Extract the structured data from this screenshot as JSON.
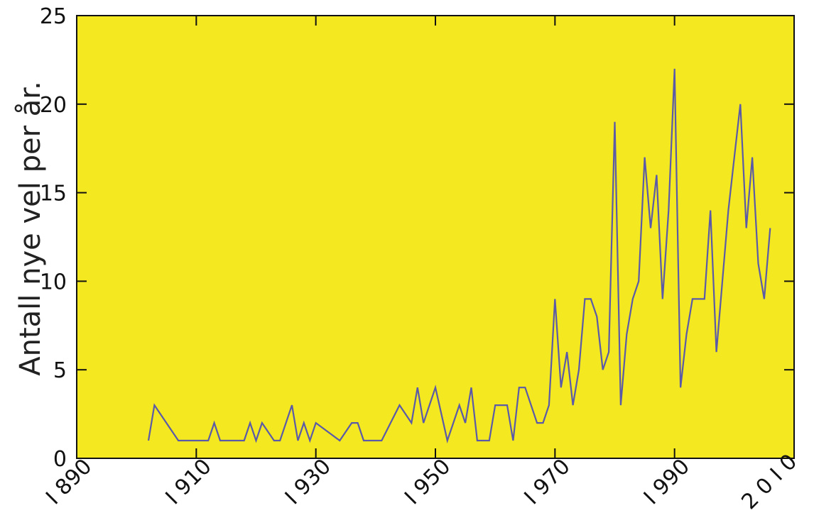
{
  "chart_data": {
    "type": "line",
    "title": "",
    "xlabel": "",
    "ylabel": "Antall nye vel per år.",
    "xlim": [
      1890,
      2010
    ],
    "ylim": [
      0,
      25
    ],
    "x_ticks": [
      1890,
      1910,
      1930,
      1950,
      1970,
      1990,
      2010
    ],
    "x_tick_labels": [
      "I 890",
      "I 910",
      "I 930",
      "I 950",
      "I 970",
      "I 990",
      "2 0 I 0"
    ],
    "y_ticks": [
      0,
      5,
      10,
      15,
      20,
      25
    ],
    "y_tick_labels": [
      "0",
      "5",
      "10",
      "15",
      "20",
      "25"
    ],
    "grid": false,
    "colors": {
      "plot_background": "#f4e820",
      "line": "#5a5aa8",
      "axis": "#111111"
    },
    "series": [
      {
        "x": [
          1902,
          1903,
          1907,
          1912,
          1913,
          1914,
          1918,
          1919,
          1920,
          1921,
          1923,
          1924,
          1926,
          1927,
          1928,
          1929,
          1930,
          1934,
          1936,
          1937,
          1938,
          1941,
          1944,
          1946,
          1947,
          1948,
          1950,
          1952,
          1954,
          1955,
          1956,
          1957,
          1959,
          1960,
          1962,
          1963,
          1964,
          1965,
          1967,
          1968,
          1969,
          1970,
          1971,
          1972,
          1973,
          1974,
          1975,
          1976,
          1977,
          1978,
          1979,
          1980,
          1981,
          1982,
          1983,
          1984,
          1985,
          1986,
          1987,
          1988,
          1989,
          1990,
          1991,
          1992,
          1993,
          1994,
          1995,
          1996,
          1997,
          1998,
          1999,
          2000,
          2001,
          2002,
          2003,
          2004,
          2005,
          2006
        ],
        "values": [
          1,
          3,
          1,
          1,
          2,
          1,
          1,
          2,
          1,
          2,
          1,
          1,
          3,
          1,
          2,
          1,
          2,
          1,
          2,
          2,
          1,
          1,
          3,
          2,
          4,
          2,
          4,
          1,
          3,
          2,
          4,
          1,
          1,
          3,
          3,
          1,
          4,
          4,
          2,
          2,
          3,
          9,
          4,
          6,
          3,
          5,
          9,
          9,
          8,
          5,
          6,
          19,
          3,
          7,
          9,
          10,
          17,
          13,
          16,
          9,
          14,
          22,
          4,
          7,
          9,
          9,
          9,
          14,
          6,
          10,
          14,
          17,
          20,
          13,
          17,
          11,
          9,
          13
        ]
      }
    ]
  }
}
